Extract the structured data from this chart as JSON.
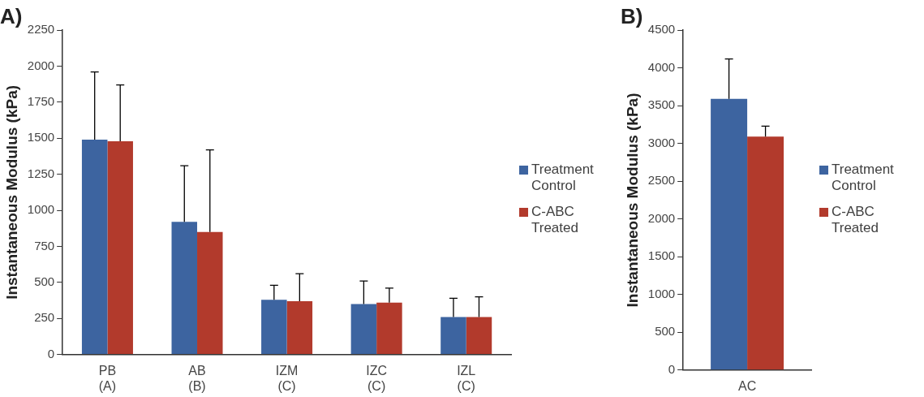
{
  "chart_data": [
    {
      "type": "bar",
      "title": "A)",
      "ylabel": "Instantaneous Modulus (kPa)",
      "categories": [
        "PB (A)",
        "AB (B)",
        "IZM (C)",
        "IZC (C)",
        "IZL (C)"
      ],
      "ylim": [
        0,
        2250
      ],
      "yticks": [
        0,
        250,
        500,
        750,
        1000,
        1250,
        1500,
        1750,
        2000,
        2250
      ],
      "grid": false,
      "legend": "right",
      "series": [
        {
          "name": "Treatment Control",
          "color": "#3d64a0",
          "values": [
            1490,
            920,
            380,
            350,
            260
          ],
          "errors": [
            [
              1490,
              1960
            ],
            [
              920,
              1310
            ],
            [
              380,
              480
            ],
            [
              350,
              510
            ],
            [
              260,
              390
            ]
          ]
        },
        {
          "name": "C-ABC Treated",
          "color": "#b23a2c",
          "values": [
            1480,
            850,
            370,
            360,
            260
          ],
          "errors": [
            [
              1480,
              1870
            ],
            [
              850,
              1420
            ],
            [
              370,
              560
            ],
            [
              360,
              460
            ],
            [
              260,
              400
            ]
          ]
        }
      ]
    },
    {
      "type": "bar",
      "title": "B)",
      "ylabel": "Instantaneous Modulus (kPa)",
      "categories": [
        "AC"
      ],
      "ylim": [
        0,
        4500
      ],
      "yticks": [
        0,
        500,
        1000,
        1500,
        2000,
        2500,
        3000,
        3500,
        4000,
        4500
      ],
      "grid": false,
      "legend": "right",
      "series": [
        {
          "name": "Treatment Control",
          "color": "#3d64a0",
          "values": [
            3590
          ],
          "errors": [
            [
              3590,
              4120
            ]
          ]
        },
        {
          "name": "C-ABC Treated",
          "color": "#b23a2c",
          "values": [
            3090
          ],
          "errors": [
            [
              3090,
              3230
            ]
          ]
        }
      ]
    }
  ]
}
